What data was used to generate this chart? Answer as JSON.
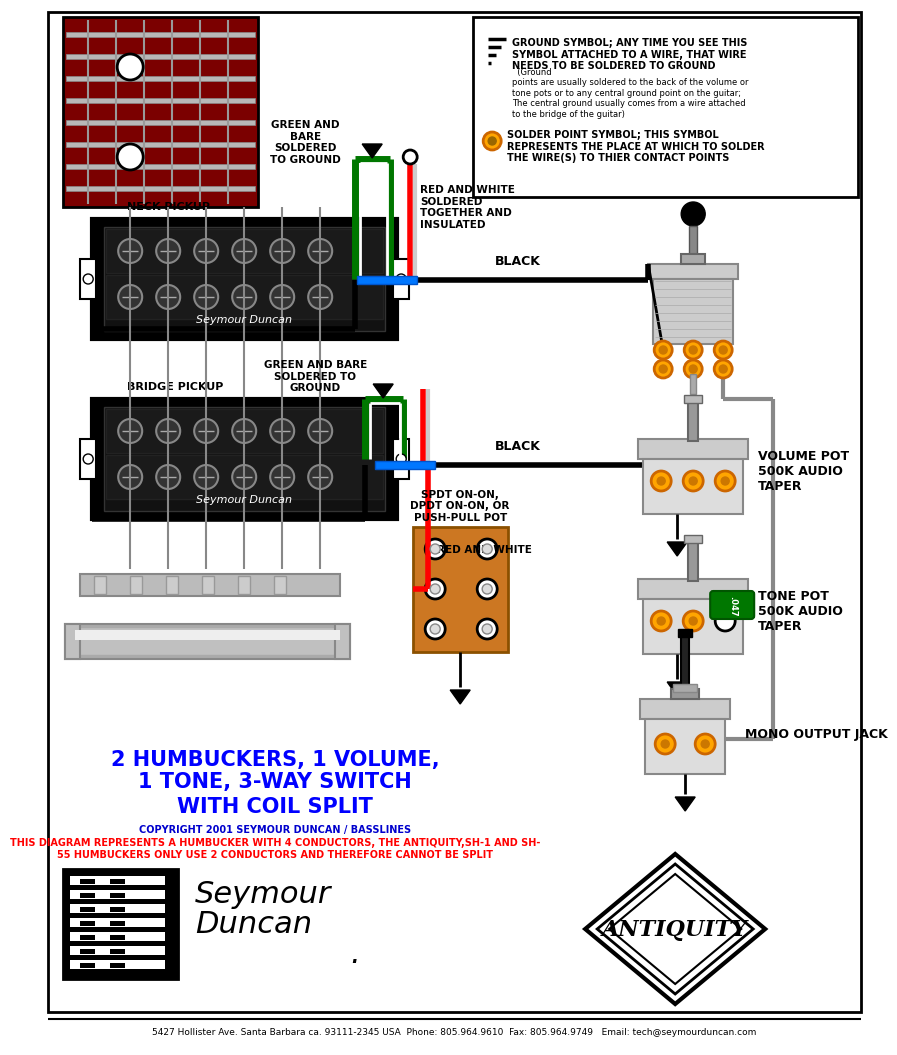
{
  "title_line1": "2 HUMBUCKERS, 1 VOLUME,",
  "title_line2": "1 TONE, 3-WAY SWITCH",
  "title_line3": "WITH COIL SPLIT",
  "title_color": "#0000FF",
  "copyright_text": "COPYRIGHT 2001 SEYMOUR DUNCAN / BASSLINES",
  "copyright_color": "#0000CD",
  "disclaimer_line1": "THIS DIAGRAM REPRESENTS A HUMBUCKER WITH 4 CONDUCTORS, THE ANTIQUITY,SH-1 AND SH-",
  "disclaimer_line2": "55 HUMBUCKERS ONLY USE 2 CONDUCTORS AND THEREFORE CANNOT BE SPLIT",
  "disclaimer_color": "#FF0000",
  "footer_text": "5427 Hollister Ave. Santa Barbara ca. 93111-2345 USA  Phone: 805.964.9610  Fax: 805.964.9749   Email: tech@seymourduncan.com",
  "footer_color": "#000000",
  "bg_color": "#FFFFFF",
  "neck_pickup_label": "NECK PICKUP",
  "bridge_pickup_label": "BRIDGE PICKUP",
  "green_bare_label1": "GREEN AND\nBARE\nSOLDERED\nTO GROUND",
  "green_bare_label2": "GREEN AND BARE\nSOLDERED TO\nGROUND",
  "red_white_label1": "RED AND WHITE\nSOLDERED\nTOGETHER AND\nINSULATED",
  "red_white_label2": "RED AND WHITE",
  "black_label1": "BLACK",
  "black_label2": "BLACK",
  "volume_label": "VOLUME POT\n500K AUDIO\nTAPER",
  "tone_label": "TONE POT\n500K AUDIO\nTAPER",
  "mono_jack_label": "MONO OUTPUT JACK",
  "spdt_label": "SPDT ON-ON,\nDPDT ON-ON, OR\nPUSH-PULL POT",
  "ground_symbol_bold": "GROUND SYMBOL; ANY TIME YOU SEE THIS\nSYMBOL ATTACHED TO A WIRE, THAT WIRE\nNEEDS TO BE SOLDERED TO GROUND",
  "ground_detail": "  (Ground\npoints are usually soldered to the back of the volume or\ntone pots or to any central ground point on the guitar;\nThe central ground usually comes from a wire attached\nto the bridge of the guitar)",
  "solder_symbol_text": "SOLDER POINT SYMBOL; THIS SYMBOL\nREPRESENTS THE PLACE AT WHICH TO SOLDER\nTHE WIRE(S) TO THIER CONTACT POINTS",
  "antiquity_text": "ANTIQUITY"
}
